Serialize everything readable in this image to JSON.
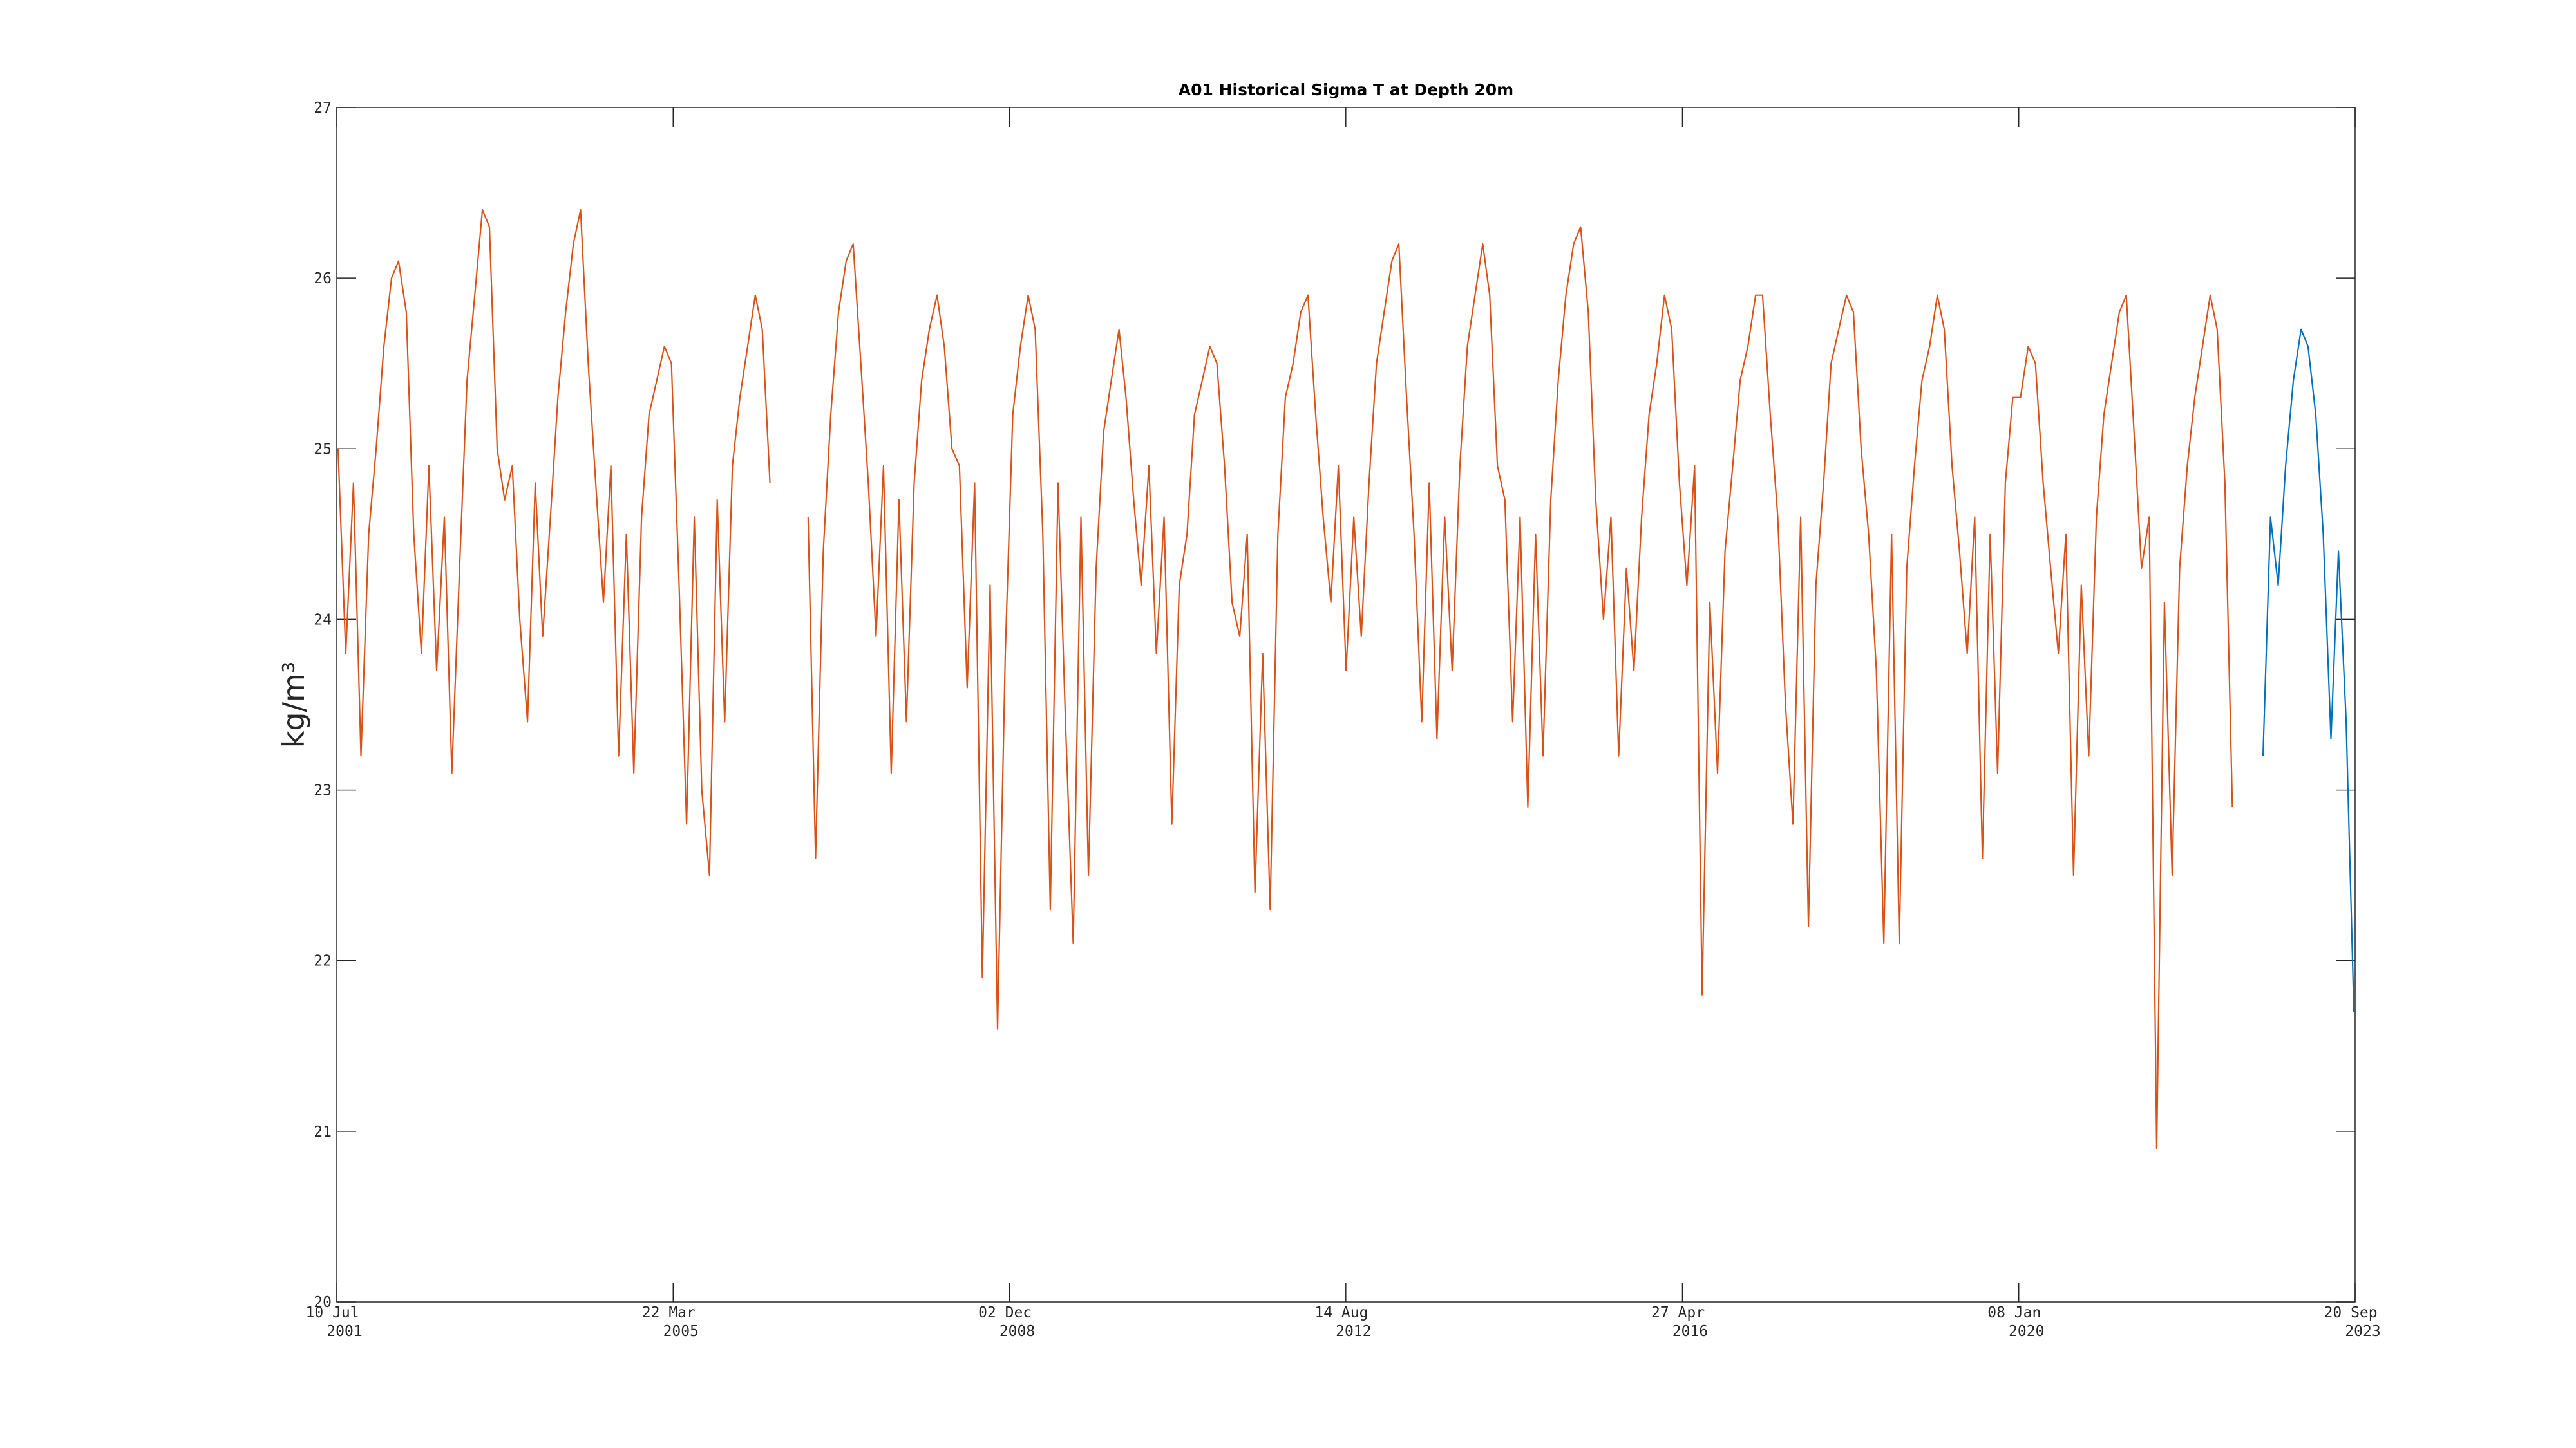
{
  "chart_data": {
    "type": "line",
    "title": "A01 Historical Sigma T at Depth 20m",
    "y_label": "kg/m³",
    "x": [
      "2001-07-15",
      "2001-08-15",
      "2001-09-15",
      "2001-10-15",
      "2001-11-15",
      "2001-12-15",
      "2002-01-15",
      "2002-02-15",
      "2002-03-15",
      "2002-04-15",
      "2002-05-15",
      "2002-06-15",
      "2002-07-15",
      "2002-08-15",
      "2002-09-15",
      "2002-10-15",
      "2002-11-15",
      "2002-12-15",
      "2003-01-15",
      "2003-02-15",
      "2003-03-15",
      "2003-04-15",
      "2003-05-15",
      "2003-06-15",
      "2003-07-15",
      "2003-08-15",
      "2003-09-15",
      "2003-10-15",
      "2003-11-15",
      "2003-12-15",
      "2004-01-15",
      "2004-02-15",
      "2004-03-15",
      "2004-04-15",
      "2004-05-15",
      "2004-06-15",
      "2004-07-15",
      "2004-08-15",
      "2004-09-15",
      "2004-10-15",
      "2004-11-15",
      "2004-12-15",
      "2005-01-15",
      "2005-02-15",
      "2005-03-15",
      "2005-04-15",
      "2005-05-15",
      "2005-06-15",
      "2005-07-15",
      "2005-08-15",
      "2005-09-15",
      "2005-10-15",
      "2005-11-15",
      "2005-12-15",
      "2006-01-15",
      "2006-02-15",
      "2006-03-15",
      "2006-04-15",
      "2006-05-15",
      "2006-06-15",
      "2006-07-15",
      "2006-08-15",
      "2006-09-15",
      "2006-10-15",
      "2006-11-15",
      "2006-12-15",
      "2007-01-15",
      "2007-02-15",
      "2007-03-15",
      "2007-04-15",
      "2007-05-15",
      "2007-06-15",
      "2007-07-15",
      "2007-08-15",
      "2007-09-15",
      "2007-10-15",
      "2007-11-15",
      "2007-12-15",
      "2008-01-15",
      "2008-02-15",
      "2008-03-15",
      "2008-04-15",
      "2008-05-15",
      "2008-06-15",
      "2008-07-15",
      "2008-08-15",
      "2008-09-15",
      "2008-10-15",
      "2008-11-15",
      "2008-12-15",
      "2009-01-15",
      "2009-02-15",
      "2009-03-15",
      "2009-04-15",
      "2009-05-15",
      "2009-06-15",
      "2009-07-15",
      "2009-08-15",
      "2009-09-15",
      "2009-10-15",
      "2009-11-15",
      "2009-12-15",
      "2010-01-15",
      "2010-02-15",
      "2010-03-15",
      "2010-04-15",
      "2010-05-15",
      "2010-06-15",
      "2010-07-15",
      "2010-08-15",
      "2010-09-15",
      "2010-10-15",
      "2010-11-15",
      "2010-12-15",
      "2011-01-15",
      "2011-02-15",
      "2011-03-15",
      "2011-04-15",
      "2011-05-15",
      "2011-06-15",
      "2011-07-15",
      "2011-08-15",
      "2011-09-15",
      "2011-10-15",
      "2011-11-15",
      "2011-12-15",
      "2012-01-15",
      "2012-02-15",
      "2012-03-15",
      "2012-04-15",
      "2012-05-15",
      "2012-06-15",
      "2012-07-15",
      "2012-08-15",
      "2012-09-15",
      "2012-10-15",
      "2012-11-15",
      "2012-12-15",
      "2013-01-15",
      "2013-02-15",
      "2013-03-15",
      "2013-04-15",
      "2013-05-15",
      "2013-06-15",
      "2013-07-15",
      "2013-08-15",
      "2013-09-15",
      "2013-10-15",
      "2013-11-15",
      "2013-12-15",
      "2014-01-15",
      "2014-02-15",
      "2014-03-15",
      "2014-04-15",
      "2014-05-15",
      "2014-06-15",
      "2014-07-15",
      "2014-08-15",
      "2014-09-15",
      "2014-10-15",
      "2014-11-15",
      "2014-12-15",
      "2015-01-15",
      "2015-02-15",
      "2015-03-15",
      "2015-04-15",
      "2015-05-15",
      "2015-06-15",
      "2015-07-15",
      "2015-08-15",
      "2015-09-15",
      "2015-10-15",
      "2015-11-15",
      "2015-12-15",
      "2016-01-15",
      "2016-02-15",
      "2016-03-15",
      "2016-04-15",
      "2016-05-15",
      "2016-06-15",
      "2016-07-15",
      "2016-08-15",
      "2016-09-15",
      "2016-10-15",
      "2016-11-15",
      "2016-12-15",
      "2017-01-15",
      "2017-02-15",
      "2017-03-15",
      "2017-04-15",
      "2017-05-15",
      "2017-06-15",
      "2017-07-15",
      "2017-08-15",
      "2017-09-15",
      "2017-10-15",
      "2017-11-15",
      "2017-12-15",
      "2018-01-15",
      "2018-02-15",
      "2018-03-15",
      "2018-04-15",
      "2018-05-15",
      "2018-06-15",
      "2018-07-15",
      "2018-08-15",
      "2018-09-15",
      "2018-10-15",
      "2018-11-15",
      "2018-12-15",
      "2019-01-15",
      "2019-02-15",
      "2019-03-15",
      "2019-04-15",
      "2019-05-15",
      "2019-06-15",
      "2019-07-15",
      "2019-08-15",
      "2019-09-15",
      "2019-10-15",
      "2019-11-15",
      "2019-12-15",
      "2020-01-15",
      "2020-02-15",
      "2020-03-15",
      "2020-04-15",
      "2020-05-15",
      "2020-06-15",
      "2020-07-15",
      "2020-08-15",
      "2020-09-15",
      "2020-10-15",
      "2020-11-15",
      "2020-12-15",
      "2021-01-15",
      "2021-02-15",
      "2021-03-15",
      "2021-04-15",
      "2021-05-15",
      "2021-06-15",
      "2021-07-15",
      "2021-08-15",
      "2021-09-15",
      "2021-10-15",
      "2021-11-15",
      "2021-12-15",
      "2022-01-15",
      "2022-02-15",
      "2022-03-15",
      "2022-04-15",
      "2022-05-15",
      "2022-06-15",
      "2022-07-15",
      "2022-08-15",
      "2022-09-15",
      "2022-10-15",
      "2022-11-15",
      "2022-12-15",
      "2023-01-15",
      "2023-02-15",
      "2023-03-15",
      "2023-04-15",
      "2023-05-15",
      "2023-06-15",
      "2023-07-15",
      "2023-08-15",
      "2023-09-15"
    ],
    "series": [
      {
        "color": "#d95319",
        "values": [
          25.0,
          23.8,
          24.8,
          23.2,
          24.5,
          25.0,
          25.6,
          26.0,
          26.1,
          25.8,
          24.5,
          23.8,
          24.9,
          23.7,
          24.6,
          23.1,
          24.3,
          25.4,
          25.9,
          26.4,
          26.3,
          25.0,
          24.7,
          24.9,
          24.0,
          23.4,
          24.8,
          23.9,
          24.6,
          25.3,
          25.8,
          26.2,
          26.4,
          25.5,
          24.8,
          24.1,
          24.9,
          23.2,
          24.5,
          23.1,
          24.6,
          25.2,
          25.4,
          25.6,
          25.5,
          24.2,
          22.8,
          24.6,
          23.0,
          22.5,
          24.7,
          23.4,
          24.9,
          25.3,
          25.6,
          25.9,
          25.7,
          24.8,
          null,
          null,
          null,
          null,
          24.6,
          22.6,
          24.4,
          25.2,
          25.8,
          26.1,
          26.2,
          25.5,
          24.8,
          23.9,
          24.9,
          23.1,
          24.7,
          23.4,
          24.8,
          25.4,
          25.7,
          25.9,
          25.6,
          25.0,
          24.9,
          23.6,
          24.8,
          21.9,
          24.2,
          21.6,
          23.8,
          25.2,
          25.6,
          25.9,
          25.7,
          24.5,
          22.3,
          24.8,
          23.4,
          22.1,
          24.6,
          22.5,
          24.3,
          25.1,
          25.4,
          25.7,
          25.3,
          24.7,
          24.2,
          24.9,
          23.8,
          24.6,
          22.8,
          24.2,
          24.5,
          25.2,
          25.4,
          25.6,
          25.5,
          24.9,
          24.1,
          23.9,
          24.5,
          22.4,
          23.8,
          22.3,
          24.5,
          25.3,
          25.5,
          25.8,
          25.9,
          25.2,
          24.6,
          24.1,
          24.9,
          23.7,
          24.6,
          23.9,
          24.8,
          25.5,
          25.8,
          26.1,
          26.2,
          25.3,
          24.5,
          23.4,
          24.8,
          23.3,
          24.6,
          23.7,
          24.9,
          25.6,
          25.9,
          26.2,
          25.9,
          24.9,
          24.7,
          23.4,
          24.6,
          22.9,
          24.5,
          23.2,
          24.7,
          25.4,
          25.9,
          26.2,
          26.3,
          25.8,
          24.7,
          24.0,
          24.6,
          23.2,
          24.3,
          23.7,
          24.6,
          25.2,
          25.5,
          25.9,
          25.7,
          24.8,
          24.2,
          24.9,
          21.8,
          24.1,
          23.1,
          24.4,
          24.9,
          25.4,
          25.6,
          25.9,
          25.9,
          25.2,
          24.6,
          23.5,
          22.8,
          24.6,
          22.2,
          24.2,
          24.8,
          25.5,
          25.7,
          25.9,
          25.8,
          25.0,
          24.5,
          23.7,
          22.1,
          24.5,
          22.1,
          24.3,
          24.9,
          25.4,
          25.6,
          25.9,
          25.7,
          24.9,
          24.4,
          23.8,
          24.6,
          22.6,
          24.5,
          23.1,
          24.8,
          25.3,
          25.3,
          25.6,
          25.5,
          24.8,
          24.3,
          23.8,
          24.5,
          22.5,
          24.2,
          23.2,
          24.6,
          25.2,
          25.5,
          25.8,
          25.9,
          25.1,
          24.3,
          24.6,
          20.9,
          24.1,
          22.5,
          24.3,
          24.9,
          25.3,
          25.6,
          25.9,
          25.7,
          24.8,
          22.9,
          null,
          null,
          null,
          null,
          null,
          null,
          null,
          null,
          null,
          null,
          null,
          null,
          null,
          null,
          null,
          null
        ]
      },
      {
        "color": "#0072bd",
        "values": [
          null,
          null,
          null,
          null,
          null,
          null,
          null,
          null,
          null,
          null,
          null,
          null,
          null,
          null,
          null,
          null,
          null,
          null,
          null,
          null,
          null,
          null,
          null,
          null,
          null,
          null,
          null,
          null,
          null,
          null,
          null,
          null,
          null,
          null,
          null,
          null,
          null,
          null,
          null,
          null,
          null,
          null,
          null,
          null,
          null,
          null,
          null,
          null,
          null,
          null,
          null,
          null,
          null,
          null,
          null,
          null,
          null,
          null,
          null,
          null,
          null,
          null,
          null,
          null,
          null,
          null,
          null,
          null,
          null,
          null,
          null,
          null,
          null,
          null,
          null,
          null,
          null,
          null,
          null,
          null,
          null,
          null,
          null,
          null,
          null,
          null,
          null,
          null,
          null,
          null,
          null,
          null,
          null,
          null,
          null,
          null,
          null,
          null,
          null,
          null,
          null,
          null,
          null,
          null,
          null,
          null,
          null,
          null,
          null,
          null,
          null,
          null,
          null,
          null,
          null,
          null,
          null,
          null,
          null,
          null,
          null,
          null,
          null,
          null,
          null,
          null,
          null,
          null,
          null,
          null,
          null,
          null,
          null,
          null,
          null,
          null,
          null,
          null,
          null,
          null,
          null,
          null,
          null,
          null,
          null,
          null,
          null,
          null,
          null,
          null,
          null,
          null,
          null,
          null,
          null,
          null,
          null,
          null,
          null,
          null,
          null,
          null,
          null,
          null,
          null,
          null,
          null,
          null,
          null,
          null,
          null,
          null,
          null,
          null,
          null,
          null,
          null,
          null,
          null,
          null,
          null,
          null,
          null,
          null,
          null,
          null,
          null,
          null,
          null,
          null,
          null,
          null,
          null,
          null,
          null,
          null,
          null,
          null,
          null,
          null,
          null,
          null,
          null,
          null,
          null,
          null,
          null,
          null,
          null,
          null,
          null,
          null,
          null,
          null,
          null,
          null,
          null,
          null,
          null,
          null,
          null,
          null,
          null,
          null,
          null,
          null,
          null,
          null,
          null,
          null,
          null,
          null,
          null,
          null,
          null,
          null,
          null,
          null,
          null,
          null,
          null,
          null,
          null,
          null,
          null,
          null,
          null,
          null,
          null,
          null,
          null,
          null,
          null,
          null,
          23.2,
          24.6,
          24.2,
          24.9,
          25.4,
          25.7,
          25.6,
          25.2,
          24.5,
          23.3,
          24.4,
          23.4,
          21.7
        ]
      }
    ],
    "xlim": [
      "2001-07-10",
      "2023-09-20"
    ],
    "xticks": [
      {
        "value": "2001-07-10",
        "label": "10 Jul 2001"
      },
      {
        "value": "2005-03-22",
        "label": "22 Mar 2005"
      },
      {
        "value": "2008-12-02",
        "label": "02 Dec 2008"
      },
      {
        "value": "2012-08-14",
        "label": "14 Aug 2012"
      },
      {
        "value": "2016-04-27",
        "label": "27 Apr 2016"
      },
      {
        "value": "2020-01-08",
        "label": "08 Jan 2020"
      },
      {
        "value": "2023-09-20",
        "label": "20 Sep 2023"
      }
    ],
    "ylim": [
      20,
      27
    ],
    "yticks": [
      20,
      21,
      22,
      23,
      24,
      25,
      26,
      27
    ],
    "grid": false
  }
}
